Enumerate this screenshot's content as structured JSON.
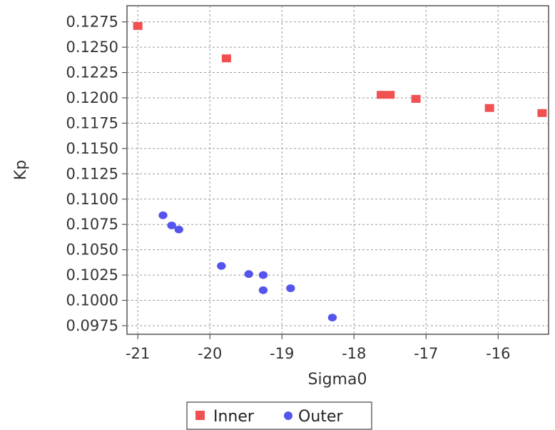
{
  "chart_data": {
    "type": "scatter",
    "title": "",
    "xlabel": "Sigma0",
    "ylabel": "Kp",
    "xlim": [
      -21.15,
      -15.3
    ],
    "ylim": [
      0.09665,
      0.1291
    ],
    "x_ticks": [
      "-21",
      "-20",
      "-19",
      "-18",
      "-17",
      "-16"
    ],
    "x_tick_values": [
      -21,
      -20,
      -19,
      -18,
      -17,
      -16
    ],
    "y_ticks": [
      "0.0975",
      "0.1000",
      "0.1025",
      "0.1050",
      "0.1075",
      "0.1100",
      "0.1125",
      "0.1150",
      "0.1175",
      "0.1200",
      "0.1225",
      "0.1250",
      "0.1275"
    ],
    "y_tick_values": [
      0.0975,
      0.1,
      0.1025,
      0.105,
      0.1075,
      0.11,
      0.1125,
      0.115,
      0.1175,
      0.12,
      0.1225,
      0.125,
      0.1275
    ],
    "grid": true,
    "legend_position": "bottom",
    "series": [
      {
        "name": "Inner",
        "marker": "square",
        "color": "#f05050",
        "points": [
          {
            "x": -21.0,
            "y": 0.1271
          },
          {
            "x": -19.77,
            "y": 0.1239
          },
          {
            "x": -17.62,
            "y": 0.1203
          },
          {
            "x": -17.5,
            "y": 0.1203
          },
          {
            "x": -17.14,
            "y": 0.1199
          },
          {
            "x": -16.12,
            "y": 0.119
          },
          {
            "x": -15.39,
            "y": 0.1185
          }
        ]
      },
      {
        "name": "Outer",
        "marker": "circle",
        "color": "#5555ee",
        "points": [
          {
            "x": -20.65,
            "y": 0.1084
          },
          {
            "x": -20.53,
            "y": 0.1074
          },
          {
            "x": -20.43,
            "y": 0.107
          },
          {
            "x": -19.84,
            "y": 0.1034
          },
          {
            "x": -19.46,
            "y": 0.1026
          },
          {
            "x": -19.26,
            "y": 0.1025
          },
          {
            "x": -19.26,
            "y": 0.101
          },
          {
            "x": -18.88,
            "y": 0.1012
          },
          {
            "x": -18.3,
            "y": 0.0983
          }
        ]
      }
    ]
  }
}
